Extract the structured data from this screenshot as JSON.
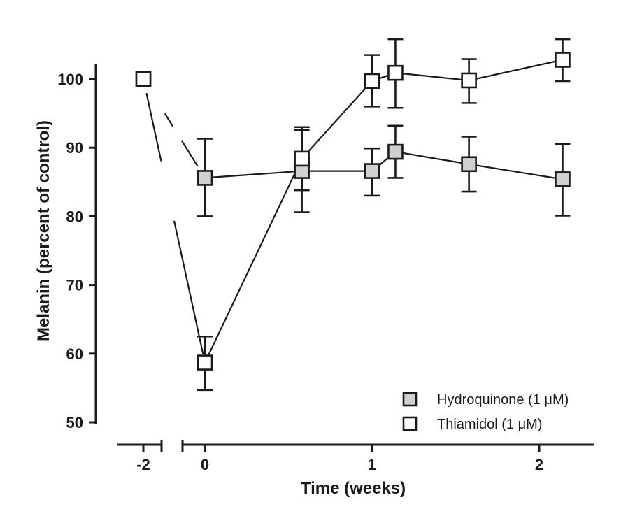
{
  "chart_data": {
    "type": "line",
    "title": "",
    "xlabel": "Time (weeks)",
    "ylabel": "Melanin (percent of control)",
    "ylim": [
      50,
      100
    ],
    "yticks": [
      50,
      60,
      70,
      80,
      90,
      100
    ],
    "xticks": [
      -2,
      0,
      1,
      2
    ],
    "xtick_labels": [
      "-2",
      "0",
      "1",
      "2"
    ],
    "axis_break": true,
    "grid": false,
    "legend_position": "bottom-right",
    "series": [
      {
        "name": "Hydroquinone (1 μM)",
        "marker_fill": "#d0d0d0",
        "points": [
          {
            "x": -2,
            "y": 100,
            "err_low": 100,
            "err_high": 100
          },
          {
            "x": 0,
            "y": 85.6,
            "err_low": 80.0,
            "err_high": 91.3
          },
          {
            "x": 0.58,
            "y": 86.6,
            "err_low": 80.6,
            "err_high": 92.6
          },
          {
            "x": 1.0,
            "y": 86.6,
            "err_low": 83.0,
            "err_high": 89.9
          },
          {
            "x": 1.14,
            "y": 89.4,
            "err_low": 85.6,
            "err_high": 93.2
          },
          {
            "x": 1.58,
            "y": 87.6,
            "err_low": 83.6,
            "err_high": 91.6
          },
          {
            "x": 2.14,
            "y": 85.4,
            "err_low": 80.1,
            "err_high": 90.5
          }
        ]
      },
      {
        "name": "Thiamidol (1 μM)",
        "marker_fill": "#ffffff",
        "points": [
          {
            "x": -2,
            "y": 100,
            "err_low": 100,
            "err_high": 100
          },
          {
            "x": 0,
            "y": 58.7,
            "err_low": 54.7,
            "err_high": 62.5
          },
          {
            "x": 0.58,
            "y": 88.4,
            "err_low": 83.8,
            "err_high": 93.0
          },
          {
            "x": 1.0,
            "y": 99.7,
            "err_low": 96.0,
            "err_high": 103.5
          },
          {
            "x": 1.14,
            "y": 100.9,
            "err_low": 95.8,
            "err_high": 105.8
          },
          {
            "x": 1.58,
            "y": 99.8,
            "err_low": 96.5,
            "err_high": 102.9
          },
          {
            "x": 2.14,
            "y": 102.8,
            "err_low": 99.7,
            "err_high": 105.8
          }
        ]
      }
    ]
  }
}
